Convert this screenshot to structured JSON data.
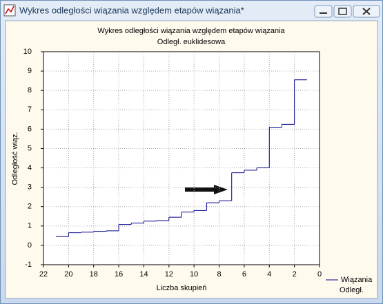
{
  "window": {
    "title": "Wykres odległości wiązania względem etapów wiązania*"
  },
  "chart_data": {
    "type": "step",
    "title": "Wykres odległości wiązania względem etapów wiązania",
    "subtitle": "Odległ. euklidesowa",
    "x_label": "Liczba skupień",
    "y_label": "Odległość wiąz.",
    "x": [
      21,
      20,
      19,
      18,
      17,
      16,
      15,
      14,
      13,
      12,
      11,
      10,
      9,
      8,
      7,
      6,
      5,
      4,
      3,
      2
    ],
    "series": [
      {
        "name": "Wiązania",
        "color": "#00008b",
        "values": [
          0.45,
          0.65,
          0.68,
          0.72,
          0.75,
          1.08,
          1.15,
          1.25,
          1.28,
          1.45,
          1.72,
          1.8,
          2.2,
          2.3,
          3.75,
          3.88,
          4.0,
          6.1,
          6.25,
          8.55
        ]
      }
    ],
    "legend_subtitle": "Odległ.",
    "xlim": [
      22,
      0
    ],
    "ylim": [
      -1,
      10
    ],
    "xticks": [
      22,
      20,
      18,
      16,
      14,
      12,
      10,
      8,
      6,
      4,
      2,
      0
    ],
    "yticks": [
      -1,
      0,
      1,
      2,
      3,
      4,
      5,
      6,
      7,
      8,
      9,
      10
    ],
    "grid": true,
    "legend": "bottom-right"
  }
}
